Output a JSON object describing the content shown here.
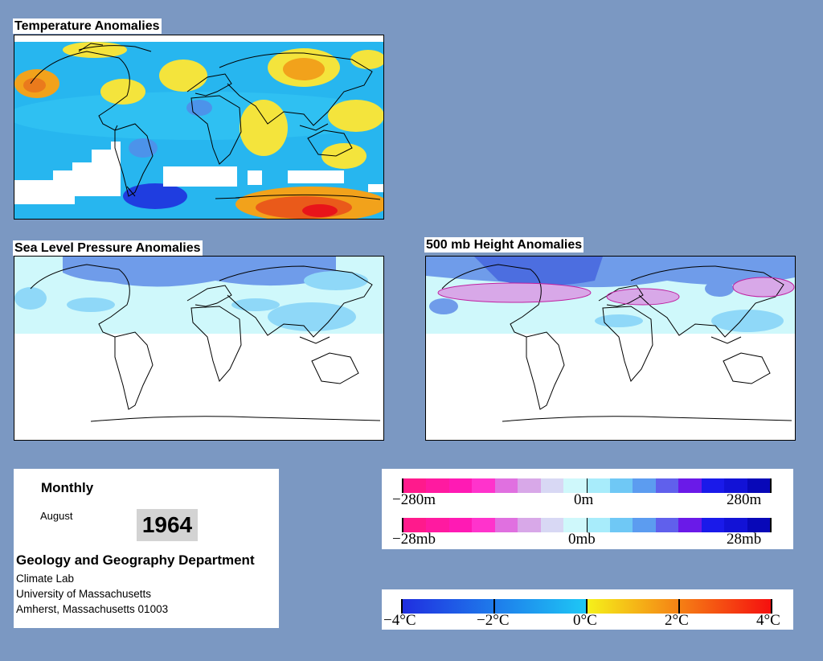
{
  "panels": {
    "temperature_title": "Temperature Anomalies",
    "slp_title": "Sea Level Pressure Anomalies",
    "height_title": "500 mb Height Anomalies"
  },
  "info": {
    "period": "Monthly",
    "month": "August",
    "year": "1964",
    "department": "Geology and Geography Department",
    "lab": "Climate Lab",
    "university": "University of Massachusetts",
    "address": "Amherst, Massachusetts 01003"
  },
  "legend_height": {
    "labels": [
      "−280m",
      "0m",
      "280m"
    ],
    "colors": [
      "#ff1a8c",
      "#ff1aa0",
      "#ff1ab4",
      "#ff33cc",
      "#e070e0",
      "#d8a8e8",
      "#d8d8f4",
      "#cff8fb",
      "#a8ecfb",
      "#6fc8f5",
      "#5c9cf0",
      "#6060ec",
      "#6a1ae8",
      "#1a1aea",
      "#1212d6",
      "#0808b8"
    ]
  },
  "legend_pressure": {
    "labels": [
      "−28mb",
      "0mb",
      "28mb"
    ],
    "colors": [
      "#ff1a8c",
      "#ff1aa0",
      "#ff1ab4",
      "#ff33cc",
      "#e070e0",
      "#d8a8e8",
      "#d8d8f4",
      "#cff8fb",
      "#a8ecfb",
      "#6fc8f5",
      "#5c9cf0",
      "#6060ec",
      "#6a1ae8",
      "#1a1aea",
      "#1212d6",
      "#0808b8"
    ]
  },
  "legend_temp": {
    "labels": [
      "−4°C",
      "−2°C",
      "0°C",
      "2°C",
      "4°C"
    ],
    "cold": [
      "#1f2ee0",
      "#1ec8f5"
    ],
    "warm": [
      "#f5f21a",
      "#f50f0f"
    ]
  }
}
